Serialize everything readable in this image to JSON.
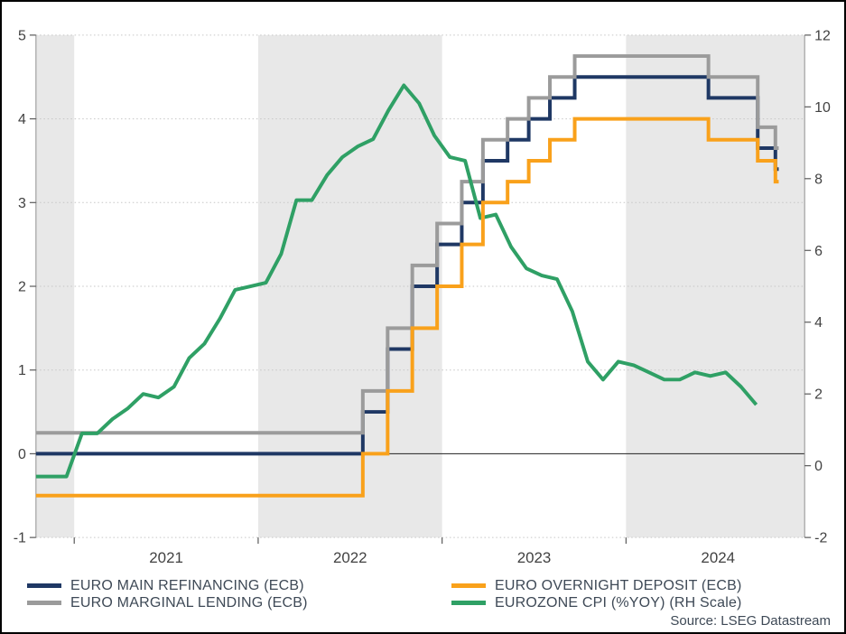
{
  "source_text": "Source: LSEG Datastream",
  "chart_data": {
    "type": "line",
    "title": "",
    "legend_position": "bottom",
    "x_axis": {
      "range": [
        2020.792,
        2024.971
      ],
      "year_tick_positions": [
        2021,
        2022,
        2023,
        2024
      ],
      "year_labels": [
        "2021",
        "2022",
        "2023",
        "2024"
      ],
      "year_label_positions": [
        2021.5,
        2022.5,
        2023.5,
        2024.5
      ]
    },
    "left_axis": {
      "range": [
        -1,
        5
      ],
      "ticks": [
        5,
        4,
        3,
        2,
        1,
        0,
        -1
      ],
      "zero_line": 0
    },
    "right_axis": {
      "range": [
        -2,
        12
      ],
      "ticks": [
        12,
        10,
        8,
        6,
        4,
        2,
        0,
        -2
      ]
    },
    "shaded_bands": [
      [
        2020.792,
        2021
      ],
      [
        2022,
        2023
      ],
      [
        2024,
        2024.971
      ]
    ],
    "grid": true,
    "colors": {
      "band": "#E8E8E8",
      "grid": "#C6C6C6",
      "axis_line": "#8F8F8F",
      "tick": "#595959",
      "zero_line": "#3A3A3A",
      "axis_label": "#414141",
      "legend_text": "#3E4956"
    },
    "draw_order": [
      "main-refinancing",
      "marginal-lending",
      "eurozone-cpi",
      "overnight-deposit"
    ],
    "series": [
      {
        "key": "main-refinancing",
        "name": "EURO MAIN REFINANCING (ECB)",
        "color": "#1F3864",
        "axis": "left",
        "style": "step",
        "end": 2024.83,
        "points": [
          [
            2020.792,
            0.0
          ],
          [
            2022.569,
            0.5
          ],
          [
            2022.704,
            1.25
          ],
          [
            2022.838,
            2.0
          ],
          [
            2022.973,
            2.5
          ],
          [
            2023.107,
            3.0
          ],
          [
            2023.222,
            3.5
          ],
          [
            2023.356,
            3.75
          ],
          [
            2023.471,
            4.0
          ],
          [
            2023.586,
            4.25
          ],
          [
            2023.721,
            4.5
          ],
          [
            2024.448,
            4.25
          ],
          [
            2024.716,
            3.65
          ],
          [
            2024.812,
            3.4
          ]
        ]
      },
      {
        "key": "marginal-lending",
        "name": "EURO MARGINAL LENDING (ECB)",
        "color": "#9B9B9B",
        "axis": "left",
        "style": "step",
        "end": 2024.83,
        "points": [
          [
            2020.792,
            0.25
          ],
          [
            2022.569,
            0.75
          ],
          [
            2022.704,
            1.5
          ],
          [
            2022.838,
            2.25
          ],
          [
            2022.973,
            2.75
          ],
          [
            2023.107,
            3.25
          ],
          [
            2023.222,
            3.75
          ],
          [
            2023.356,
            4.0
          ],
          [
            2023.471,
            4.25
          ],
          [
            2023.586,
            4.5
          ],
          [
            2023.721,
            4.75
          ],
          [
            2024.448,
            4.5
          ],
          [
            2024.716,
            3.9
          ],
          [
            2024.812,
            3.65
          ]
        ]
      },
      {
        "key": "overnight-deposit",
        "name": "EURO OVERNIGHT DEPOSIT (ECB)",
        "color": "#F9A11B",
        "axis": "left",
        "style": "step",
        "end": 2024.83,
        "points": [
          [
            2020.792,
            -0.5
          ],
          [
            2022.569,
            0.0
          ],
          [
            2022.704,
            0.75
          ],
          [
            2022.838,
            1.5
          ],
          [
            2022.973,
            2.0
          ],
          [
            2023.107,
            2.5
          ],
          [
            2023.222,
            3.0
          ],
          [
            2023.356,
            3.25
          ],
          [
            2023.471,
            3.5
          ],
          [
            2023.586,
            3.75
          ],
          [
            2023.721,
            4.0
          ],
          [
            2024.448,
            3.75
          ],
          [
            2024.716,
            3.5
          ],
          [
            2024.812,
            3.25
          ]
        ]
      },
      {
        "key": "eurozone-cpi",
        "name": "EUROZONE CPI (%YOY) (RH Scale)",
        "color": "#2FA065",
        "axis": "right",
        "style": "linear",
        "points": [
          [
            2020.792,
            -0.3
          ],
          [
            2020.875,
            -0.3
          ],
          [
            2020.958,
            -0.3
          ],
          [
            2021.042,
            0.9
          ],
          [
            2021.125,
            0.9
          ],
          [
            2021.208,
            1.3
          ],
          [
            2021.292,
            1.6
          ],
          [
            2021.375,
            2.0
          ],
          [
            2021.458,
            1.9
          ],
          [
            2021.542,
            2.2
          ],
          [
            2021.625,
            3.0
          ],
          [
            2021.708,
            3.4
          ],
          [
            2021.792,
            4.1
          ],
          [
            2021.875,
            4.9
          ],
          [
            2021.958,
            5.0
          ],
          [
            2022.042,
            5.1
          ],
          [
            2022.125,
            5.9
          ],
          [
            2022.208,
            7.4
          ],
          [
            2022.292,
            7.4
          ],
          [
            2022.375,
            8.1
          ],
          [
            2022.458,
            8.6
          ],
          [
            2022.542,
            8.9
          ],
          [
            2022.625,
            9.1
          ],
          [
            2022.708,
            9.9
          ],
          [
            2022.792,
            10.6
          ],
          [
            2022.875,
            10.1
          ],
          [
            2022.958,
            9.2
          ],
          [
            2023.042,
            8.6
          ],
          [
            2023.125,
            8.5
          ],
          [
            2023.208,
            6.9
          ],
          [
            2023.292,
            7.0
          ],
          [
            2023.375,
            6.1
          ],
          [
            2023.458,
            5.5
          ],
          [
            2023.542,
            5.3
          ],
          [
            2023.625,
            5.2
          ],
          [
            2023.708,
            4.3
          ],
          [
            2023.792,
            2.9
          ],
          [
            2023.875,
            2.4
          ],
          [
            2023.958,
            2.9
          ],
          [
            2024.042,
            2.8
          ],
          [
            2024.125,
            2.6
          ],
          [
            2024.208,
            2.4
          ],
          [
            2024.292,
            2.4
          ],
          [
            2024.375,
            2.6
          ],
          [
            2024.458,
            2.5
          ],
          [
            2024.542,
            2.6
          ],
          [
            2024.625,
            2.2
          ],
          [
            2024.708,
            1.7
          ]
        ]
      }
    ]
  },
  "legend": {
    "columns": [
      [
        "main-refinancing",
        "marginal-lending"
      ],
      [
        "overnight-deposit",
        "eurozone-cpi"
      ]
    ]
  }
}
